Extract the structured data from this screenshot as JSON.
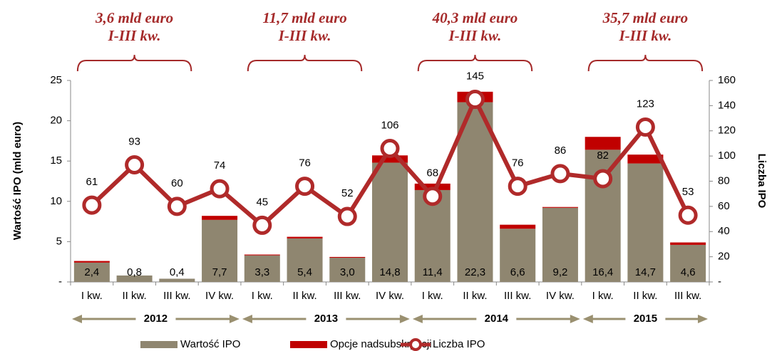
{
  "chart_data": {
    "type": "bar",
    "categories": [
      "I kw.",
      "II kw.",
      "III kw.",
      "IV kw.",
      "I kw.",
      "II kw.",
      "III kw.",
      "IV kw.",
      "I kw.",
      "II kw.",
      "III kw.",
      "IV kw.",
      "I kw.",
      "II kw.",
      "III kw."
    ],
    "series": [
      {
        "name": "Wartość IPO",
        "color": "#8f8670",
        "values": [
          2.4,
          0.8,
          0.4,
          7.7,
          3.3,
          5.4,
          3.0,
          14.8,
          11.4,
          22.3,
          6.6,
          9.2,
          16.4,
          14.7,
          4.6
        ],
        "value_labels": [
          "2,4",
          "0,8",
          "0,4",
          "7,7",
          "3,3",
          "5,4",
          "3,0",
          "14,8",
          "11,4",
          "22,3",
          "6,6",
          "9,2",
          "16,4",
          "14,7",
          "4,6"
        ]
      },
      {
        "name": "Opcje nadsubskrypcji",
        "color": "#c00000",
        "values": [
          0.2,
          0,
          0,
          0.5,
          0.1,
          0.2,
          0.1,
          0.9,
          0.8,
          1.3,
          0.5,
          0.1,
          1.6,
          1.1,
          0.3
        ]
      },
      {
        "name": "Liczba IPO",
        "color": "#b02a2a",
        "axis": "y2",
        "values": [
          61,
          93,
          60,
          74,
          45,
          76,
          52,
          106,
          68,
          145,
          76,
          86,
          82,
          123,
          53
        ]
      }
    ],
    "ylabel": "Wartość IPO (mld euro)",
    "y2label": "Liczba IPO",
    "ylim": [
      0,
      25
    ],
    "yticks": [
      {
        "value": 0,
        "label": "-"
      },
      5,
      10,
      15,
      20,
      25
    ],
    "y2lim": [
      0,
      160
    ],
    "y2ticks": [
      {
        "value": 0,
        "label": "-"
      },
      20,
      40,
      60,
      80,
      100,
      120,
      140,
      160
    ],
    "groups": [
      {
        "label": "2012",
        "annotation": [
          "3,6 mld  euro",
          "I-III kw."
        ]
      },
      {
        "label": "2013",
        "annotation": [
          "11,7 mld euro",
          "I-III kw."
        ]
      },
      {
        "label": "2014",
        "annotation": [
          "40,3 mld euro",
          "I-III kw."
        ]
      },
      {
        "label": "2015",
        "annotation": [
          "35,7 mld euro",
          "I-III kw."
        ]
      }
    ]
  }
}
